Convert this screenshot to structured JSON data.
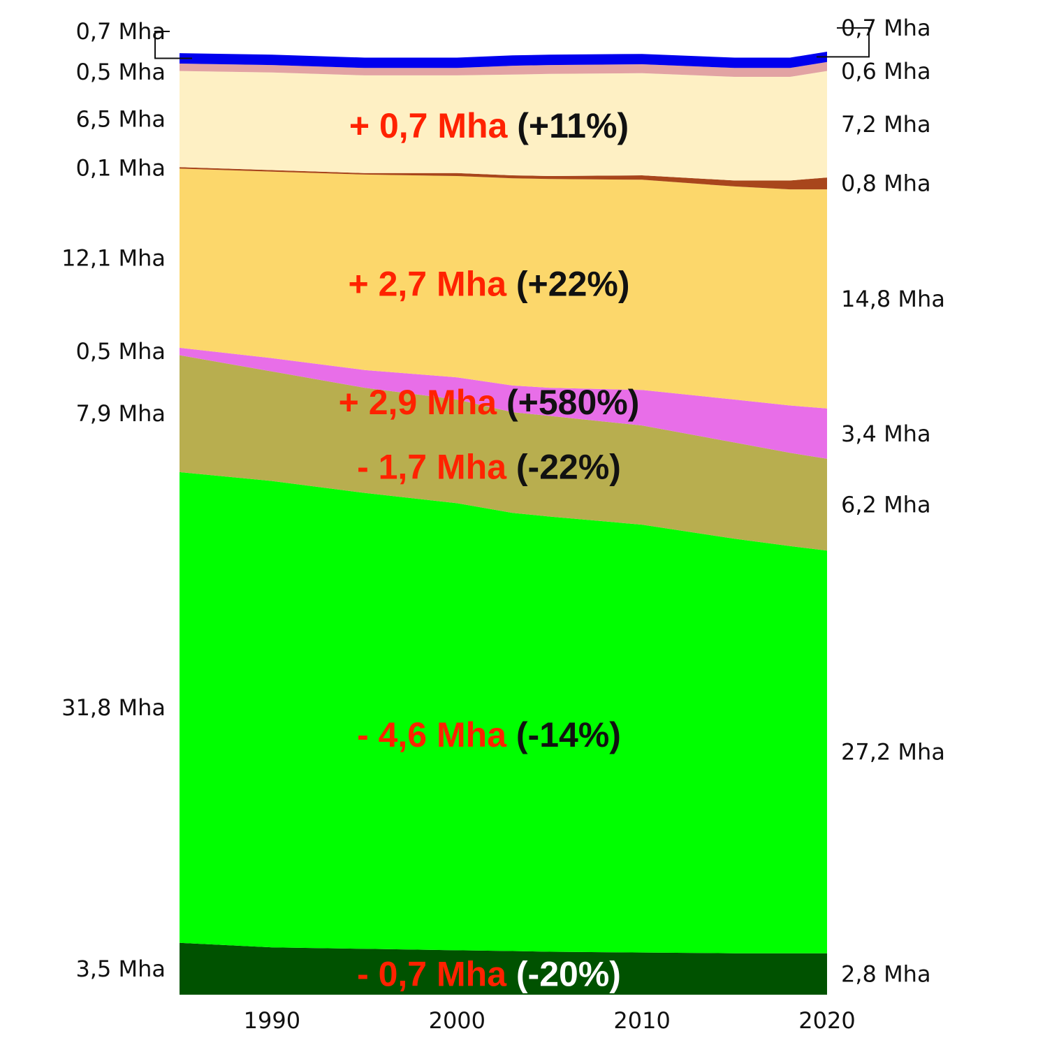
{
  "chart_data": {
    "type": "area",
    "stacked": true,
    "title": "",
    "xlabel": "",
    "ylabel": "",
    "x_ticks": [
      "1990",
      "2000",
      "2010",
      "2020"
    ],
    "x_range": [
      1985,
      2020
    ],
    "years": [
      1985,
      1990,
      1995,
      2000,
      2003,
      2005,
      2010,
      2015,
      2018,
      2020
    ],
    "series": [
      {
        "color": "#005200",
        "values": [
          3.5,
          3.2,
          3.1,
          3.0,
          2.95,
          2.9,
          2.85,
          2.8,
          2.8,
          2.8
        ],
        "start_label": "3,5 Mha",
        "end_label": "2,8 Mha",
        "change_label": "- 0,7 Mha",
        "change_pct": "(-20%)",
        "pct_color": "#ffffff"
      },
      {
        "color": "#00ff00",
        "values": [
          31.8,
          31.5,
          30.8,
          30.2,
          29.6,
          29.4,
          28.9,
          28.0,
          27.5,
          27.2
        ],
        "start_label": "31,8 Mha",
        "end_label": "27,2 Mha",
        "change_label": "- 4,6 Mha",
        "change_pct": "(-14%)",
        "pct_color": "#111111"
      },
      {
        "color": "#b8ae4f",
        "values": [
          7.9,
          7.4,
          7.1,
          7.0,
          6.8,
          6.8,
          6.7,
          6.5,
          6.3,
          6.2
        ],
        "start_label": "7,9 Mha",
        "end_label": "6,2 Mha",
        "change_label": "- 1,7 Mha",
        "change_pct": "(-22%)",
        "pct_color": "#111111"
      },
      {
        "color": "#e86ee8",
        "values": [
          0.5,
          0.9,
          1.2,
          1.5,
          1.8,
          1.9,
          2.4,
          2.9,
          3.2,
          3.4
        ],
        "start_label": "0,5 Mha",
        "end_label": "3,4 Mha",
        "change_label": "+ 2,9 Mha",
        "change_pct": "(+580%)",
        "pct_color": "#111111"
      },
      {
        "color": "#fcd76b",
        "values": [
          12.1,
          12.6,
          13.2,
          13.6,
          14.0,
          14.1,
          14.2,
          14.4,
          14.6,
          14.8
        ],
        "start_label": "12,1 Mha",
        "end_label": "14,8 Mha",
        "change_label": "+ 2,7 Mha",
        "change_pct": "(+22%)",
        "pct_color": "#111111"
      },
      {
        "color": "#a8461c",
        "values": [
          0.1,
          0.1,
          0.1,
          0.2,
          0.2,
          0.2,
          0.3,
          0.4,
          0.6,
          0.8
        ],
        "start_label": "0,1 Mha",
        "end_label": "0,8 Mha",
        "change_label": "",
        "change_pct": "",
        "pct_color": "#111111"
      },
      {
        "color": "#fef0c4",
        "values": [
          6.5,
          6.6,
          6.6,
          6.6,
          6.8,
          6.9,
          6.9,
          7.0,
          7.0,
          7.2
        ],
        "start_label": "6,5 Mha",
        "end_label": "7,2 Mha",
        "change_label": "+ 0,7 Mha",
        "change_pct": "(+11%)",
        "pct_color": "#111111"
      },
      {
        "color": "#e2a3a3",
        "values": [
          0.5,
          0.5,
          0.5,
          0.5,
          0.6,
          0.6,
          0.6,
          0.6,
          0.6,
          0.6
        ],
        "start_label": "0,5 Mha",
        "end_label": "0,6 Mha",
        "change_label": "",
        "change_pct": "",
        "pct_color": "#111111"
      },
      {
        "color": "#0000ee",
        "values": [
          0.7,
          0.7,
          0.7,
          0.7,
          0.7,
          0.7,
          0.7,
          0.7,
          0.7,
          0.7
        ],
        "start_label": "0,7 Mha",
        "end_label": "0,7 Mha",
        "change_label": "",
        "change_pct": "",
        "pct_color": "#111111"
      }
    ],
    "change_label_color": "#ff2200"
  }
}
